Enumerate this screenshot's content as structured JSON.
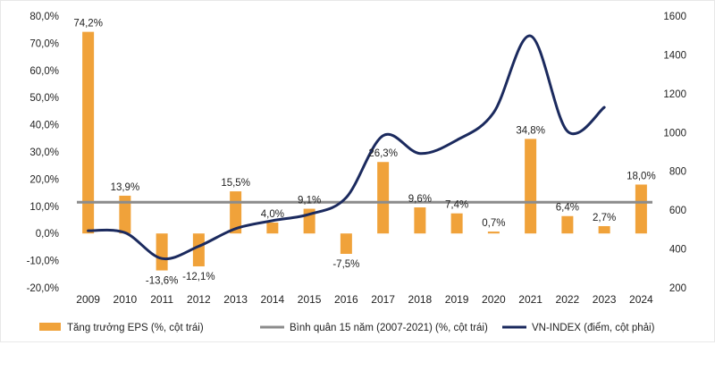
{
  "colors": {
    "bar": "#F0A23A",
    "average": "#8C8C8C",
    "vnindex": "#1B2A5E",
    "text": "#222222",
    "frame": "#E8E8E8"
  },
  "chart_data": {
    "type": "bar",
    "title": "",
    "categories": [
      "2009",
      "2010",
      "2011",
      "2012",
      "2013",
      "2014",
      "2015",
      "2016",
      "2017",
      "2018",
      "2019",
      "2020",
      "2021",
      "2022",
      "2023",
      "2024"
    ],
    "series": [
      {
        "name": "Tăng trưởng EPS (%, cột trái)",
        "type": "bar",
        "axis": "left",
        "values": [
          74.2,
          13.9,
          -13.6,
          -12.1,
          15.5,
          4.0,
          9.1,
          -7.5,
          26.3,
          9.6,
          7.4,
          0.7,
          34.8,
          6.4,
          2.7,
          18.0
        ],
        "labels": [
          "74,2%",
          "13,9%",
          "-13,6%",
          "-12,1%",
          "15,5%",
          "4,0%",
          "9,1%",
          "-7,5%",
          "26,3%",
          "9,6%",
          "7,4%",
          "0,7%",
          "34,8%",
          "6,4%",
          "2,7%",
          "18,0%"
        ]
      },
      {
        "name": "Bình quân 15 năm (2007-2021) (%, cột trái)",
        "type": "line",
        "axis": "left",
        "value": 11.5
      },
      {
        "name": "VN-INDEX (điểm, cột phải)",
        "type": "line",
        "axis": "right",
        "values": [
          494,
          484,
          351,
          414,
          505,
          546,
          579,
          665,
          984,
          892,
          961,
          1103,
          1498,
          1007,
          1130,
          null
        ]
      }
    ],
    "y_left": {
      "min": -20,
      "max": 80,
      "ticks": [
        "-20,0%",
        "-10,0%",
        "0,0%",
        "10,0%",
        "20,0%",
        "30,0%",
        "40,0%",
        "50,0%",
        "60,0%",
        "70,0%",
        "80,0%"
      ]
    },
    "y_right": {
      "min": 200,
      "max": 1600,
      "ticks": [
        "200",
        "400",
        "600",
        "800",
        "1000",
        "1200",
        "1400",
        "1600"
      ]
    },
    "legend": [
      "Tăng trưởng EPS (%, cột trái)",
      "Bình quân 15 năm (2007-2021) (%, cột trái)",
      "VN-INDEX (điểm, cột phải)"
    ],
    "legend_position": "bottom"
  }
}
